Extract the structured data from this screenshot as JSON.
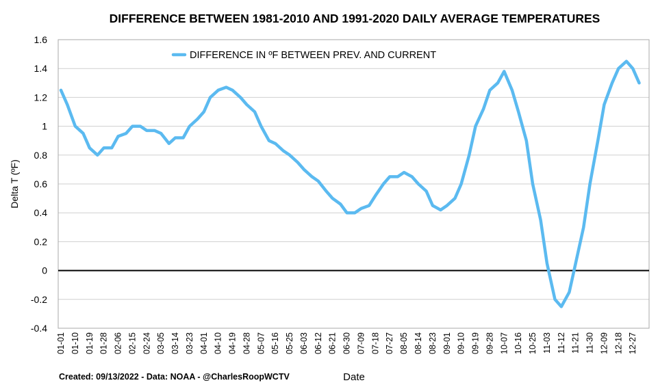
{
  "chart_data": {
    "type": "line",
    "title": "DIFFERENCE BETWEEN 1981-2010 AND 1991-2020 DAILY AVERAGE TEMPERATURES",
    "xlabel": "Date",
    "ylabel": "Delta T (ºF)",
    "ylim": [
      -0.4,
      1.6
    ],
    "yticks": [
      -0.4,
      -0.2,
      0,
      0.2,
      0.4,
      0.6,
      0.8,
      1,
      1.2,
      1.4,
      1.6
    ],
    "ytick_labels": [
      "-0.4",
      "-0.2",
      "0",
      "0.2",
      "0.4",
      "0.6",
      "0.8",
      "1",
      "1.2",
      "1.4",
      "1.6"
    ],
    "grid": true,
    "reference_line": 0,
    "legend_position": "top-center",
    "x_tick_labels": [
      "01-01",
      "01-10",
      "01-19",
      "01-28",
      "02-06",
      "02-15",
      "02-24",
      "03-05",
      "03-14",
      "03-23",
      "04-01",
      "04-10",
      "04-19",
      "04-28",
      "05-07",
      "05-16",
      "05-25",
      "06-03",
      "06-12",
      "06-21",
      "06-30",
      "07-09",
      "07-18",
      "07-27",
      "08-05",
      "08-14",
      "08-23",
      "09-01",
      "09-10",
      "09-19",
      "09-28",
      "10-07",
      "10-16",
      "10-25",
      "11-03",
      "11-12",
      "11-21",
      "11-30",
      "12-09",
      "12-18",
      "12-27"
    ],
    "series": [
      {
        "name": "DIFFERENCE IN ºF BETWEEN PREV. AND CURRENT",
        "color": "#5bbaf0",
        "x": [
          "01-01",
          "01-05",
          "01-10",
          "01-15",
          "01-19",
          "01-24",
          "01-28",
          "02-02",
          "02-06",
          "02-11",
          "02-15",
          "02-20",
          "02-24",
          "03-01",
          "03-05",
          "03-10",
          "03-14",
          "03-19",
          "03-23",
          "03-28",
          "04-01",
          "04-05",
          "04-10",
          "04-15",
          "04-19",
          "04-24",
          "04-28",
          "05-03",
          "05-07",
          "05-12",
          "05-16",
          "05-21",
          "05-25",
          "05-30",
          "06-03",
          "06-08",
          "06-12",
          "06-17",
          "06-21",
          "06-26",
          "06-30",
          "07-05",
          "07-09",
          "07-14",
          "07-18",
          "07-23",
          "07-27",
          "08-01",
          "08-05",
          "08-10",
          "08-14",
          "08-19",
          "08-23",
          "08-28",
          "09-01",
          "09-06",
          "09-10",
          "09-15",
          "09-19",
          "09-24",
          "09-28",
          "10-03",
          "10-07",
          "10-12",
          "10-16",
          "10-21",
          "10-25",
          "10-30",
          "11-03",
          "11-08",
          "11-12",
          "11-17",
          "11-21",
          "11-26",
          "11-30",
          "12-05",
          "12-09",
          "12-14",
          "12-18",
          "12-23",
          "12-27",
          "12-31"
        ],
        "y": [
          1.25,
          1.15,
          1.0,
          0.95,
          0.85,
          0.8,
          0.85,
          0.85,
          0.93,
          0.95,
          1.0,
          1.0,
          0.97,
          0.97,
          0.95,
          0.88,
          0.92,
          0.92,
          1.0,
          1.05,
          1.1,
          1.2,
          1.25,
          1.27,
          1.25,
          1.2,
          1.15,
          1.1,
          1.0,
          0.9,
          0.88,
          0.83,
          0.8,
          0.75,
          0.7,
          0.65,
          0.62,
          0.55,
          0.5,
          0.46,
          0.4,
          0.4,
          0.43,
          0.45,
          0.52,
          0.6,
          0.65,
          0.65,
          0.68,
          0.65,
          0.6,
          0.55,
          0.45,
          0.42,
          0.45,
          0.5,
          0.6,
          0.8,
          1.0,
          1.12,
          1.25,
          1.3,
          1.38,
          1.25,
          1.1,
          0.9,
          0.6,
          0.35,
          0.05,
          -0.2,
          -0.25,
          -0.15,
          0.05,
          0.3,
          0.6,
          0.9,
          1.15,
          1.3,
          1.4,
          1.45,
          1.4,
          1.3
        ]
      }
    ]
  },
  "credit": "Created: 09/13/2022 - Data: NOAA - @CharlesRoopWCTV"
}
